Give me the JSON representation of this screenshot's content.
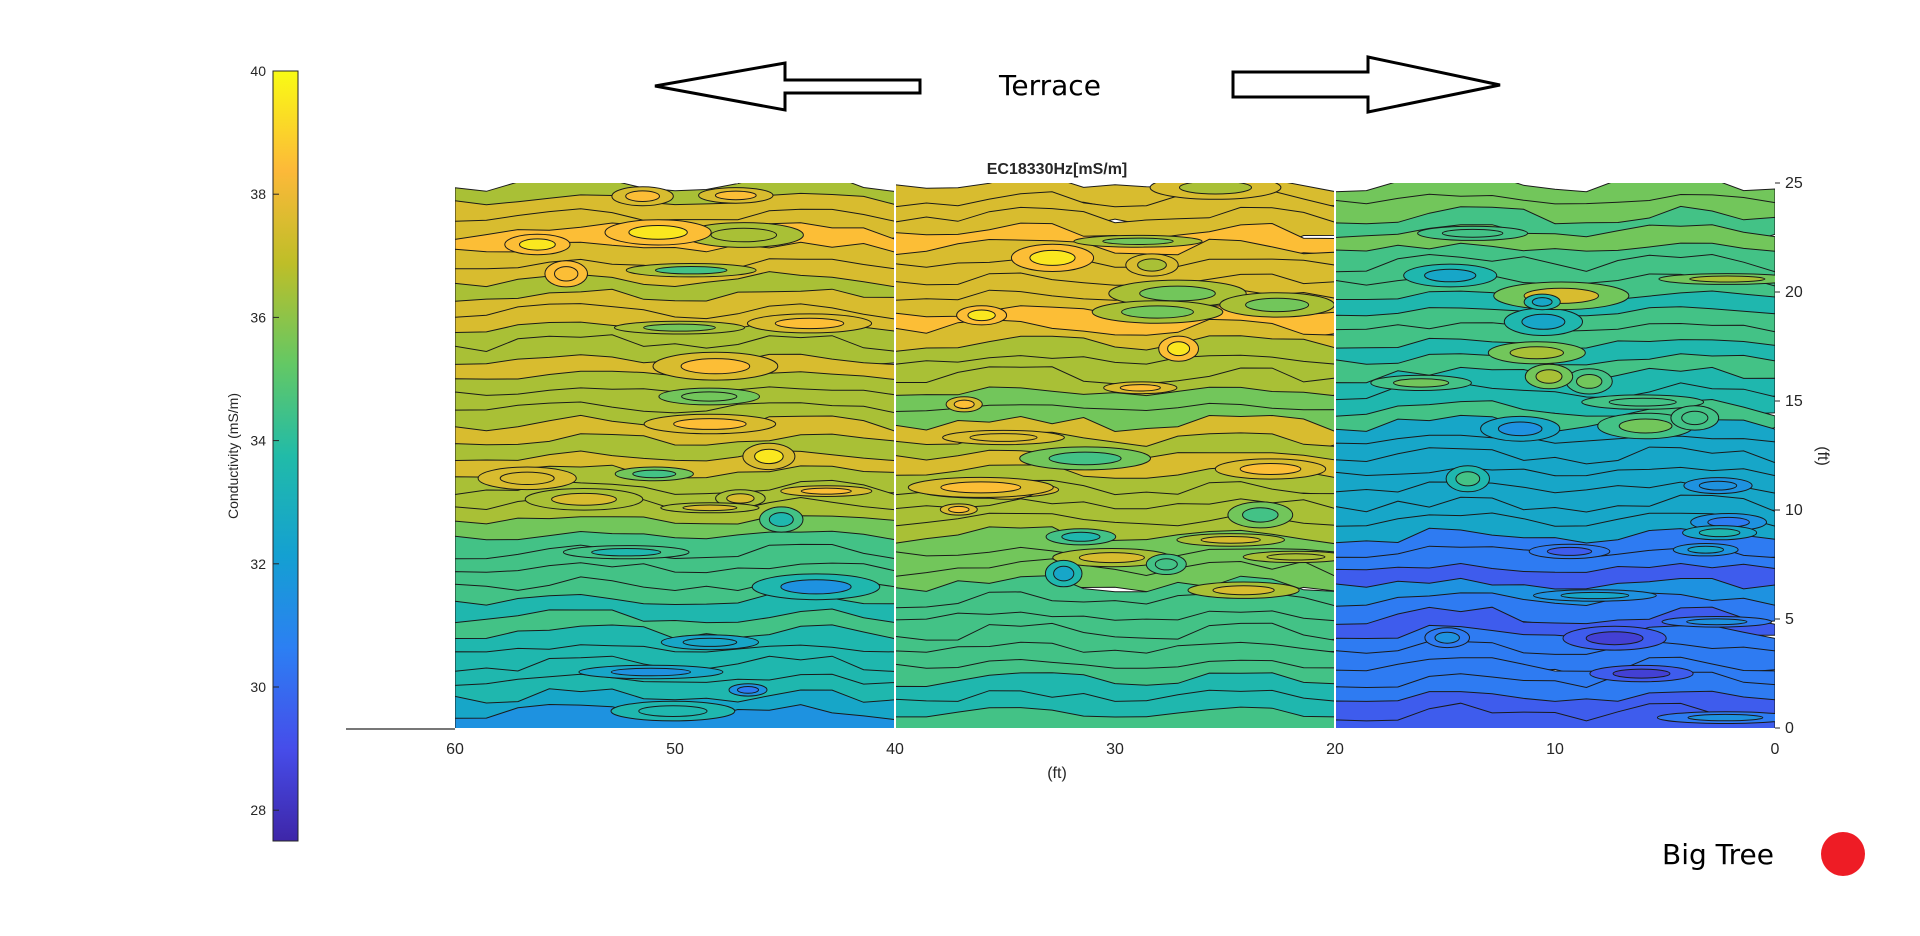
{
  "chart_data": {
    "type": "heatmap",
    "subtype": "filled-contour",
    "title": "EC18330Hz[mS/m]",
    "xlabel": "(ft)",
    "ylabel": "(ft)",
    "xlim": [
      60,
      0
    ],
    "ylim": [
      0,
      25
    ],
    "x_ticks": [
      "60",
      "50",
      "40",
      "30",
      "20",
      "10",
      "0"
    ],
    "y_ticks": [
      "0",
      "5",
      "10",
      "15",
      "20",
      "25"
    ],
    "colorbar": {
      "label": "Conductivity (mS/m)",
      "range": [
        27.5,
        40
      ],
      "ticks": [
        "28",
        "30",
        "32",
        "34",
        "36",
        "38",
        "40"
      ],
      "colormap": "parula"
    },
    "panel_boundaries_x": [
      40,
      20
    ],
    "grid": false,
    "panels": [
      {
        "x_range": [
          60,
          40
        ],
        "description_levels": "mostly 35-38 in upper half, decreasing to 30-32 near y=0",
        "profile": [
          {
            "y": 25,
            "value": 37.0
          },
          {
            "y": 22,
            "value": 37.5
          },
          {
            "y": 19,
            "value": 36.8
          },
          {
            "y": 16,
            "value": 36.5
          },
          {
            "y": 13,
            "value": 37.0
          },
          {
            "y": 10,
            "value": 36.0
          },
          {
            "y": 7,
            "value": 34.5
          },
          {
            "y": 4,
            "value": 33.5
          },
          {
            "y": 0,
            "value": 32.0
          }
        ]
      },
      {
        "x_range": [
          40,
          20
        ],
        "description_levels": "37-39 in upper part, bands near 35-38, lower part 33-35",
        "profile": [
          {
            "y": 25,
            "value": 38.0
          },
          {
            "y": 22,
            "value": 37.8
          },
          {
            "y": 19,
            "value": 37.5
          },
          {
            "y": 16,
            "value": 36.5
          },
          {
            "y": 13,
            "value": 36.5
          },
          {
            "y": 10,
            "value": 36.8
          },
          {
            "y": 7,
            "value": 35.0
          },
          {
            "y": 4,
            "value": 34.5
          },
          {
            "y": 0,
            "value": 34.0
          }
        ]
      },
      {
        "x_range": [
          20,
          0
        ],
        "description_levels": "36 at top-left, 34 in middle, 29-31 at bottom",
        "profile": [
          {
            "y": 25,
            "value": 35.5
          },
          {
            "y": 22,
            "value": 35.0
          },
          {
            "y": 19,
            "value": 34.5
          },
          {
            "y": 16,
            "value": 34.0
          },
          {
            "y": 13,
            "value": 33.0
          },
          {
            "y": 10,
            "value": 32.0
          },
          {
            "y": 7,
            "value": 30.5
          },
          {
            "y": 4,
            "value": 30.0
          },
          {
            "y": 0,
            "value": 30.0
          }
        ]
      }
    ]
  },
  "annotations": {
    "terrace_label": "Terrace",
    "big_tree_label": "Big Tree",
    "big_tree_marker_color": "#ee1c25",
    "arrows": [
      "left-arrow",
      "right-arrow"
    ]
  }
}
